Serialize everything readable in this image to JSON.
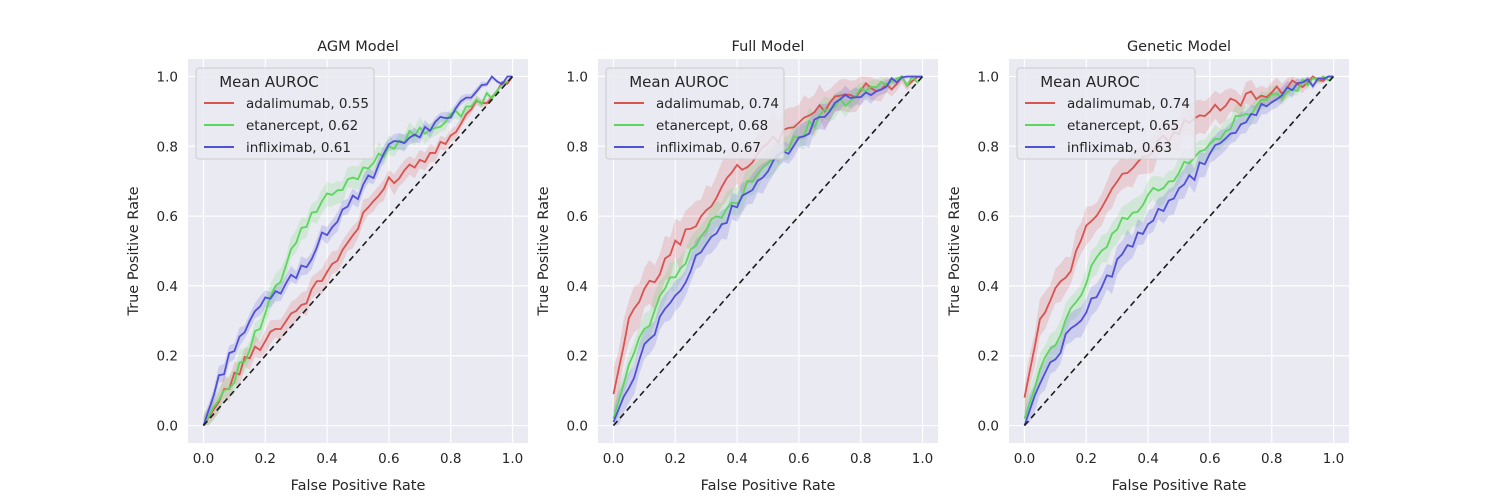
{
  "chart_data": [
    {
      "type": "line",
      "title": "AGM Model",
      "xlabel": "False Positive Rate",
      "ylabel": "True Positive Rate",
      "xlim": [
        -0.05,
        1.05
      ],
      "ylim": [
        -0.05,
        1.05
      ],
      "xticks": [
        "0.0",
        "0.2",
        "0.4",
        "0.6",
        "0.8",
        "1.0"
      ],
      "yticks": [
        "0.0",
        "0.2",
        "0.4",
        "0.6",
        "0.8",
        "1.0"
      ],
      "grid": true,
      "legend": {
        "title": "Mean AUROC",
        "position": "top-left"
      },
      "x": [
        0,
        0.05,
        0.1,
        0.15,
        0.2,
        0.25,
        0.3,
        0.35,
        0.4,
        0.45,
        0.5,
        0.55,
        0.6,
        0.65,
        0.7,
        0.75,
        0.8,
        0.85,
        0.9,
        0.95,
        1.0
      ],
      "series": [
        {
          "name": "adalimumab, 0.55",
          "color": "#d9534f",
          "values": [
            0.0,
            0.07,
            0.14,
            0.2,
            0.25,
            0.29,
            0.33,
            0.38,
            0.44,
            0.5,
            0.57,
            0.64,
            0.7,
            0.73,
            0.76,
            0.79,
            0.84,
            0.89,
            0.93,
            0.96,
            1.0
          ],
          "band": 0.04
        },
        {
          "name": "etanercept, 0.62",
          "color": "#5cd65c",
          "values": [
            0.0,
            0.08,
            0.14,
            0.22,
            0.32,
            0.42,
            0.53,
            0.6,
            0.65,
            0.68,
            0.72,
            0.76,
            0.8,
            0.82,
            0.84,
            0.86,
            0.88,
            0.9,
            0.93,
            0.96,
            1.0
          ],
          "band": 0.04
        },
        {
          "name": "infliximab, 0.61",
          "color": "#5050d8",
          "values": [
            0.0,
            0.13,
            0.23,
            0.3,
            0.35,
            0.39,
            0.43,
            0.49,
            0.56,
            0.61,
            0.66,
            0.72,
            0.79,
            0.82,
            0.83,
            0.86,
            0.9,
            0.94,
            0.97,
            0.99,
            1.0
          ],
          "band": 0.03
        }
      ]
    },
    {
      "type": "line",
      "title": "Full Model",
      "xlabel": "False Positive Rate",
      "ylabel": "True Positive Rate",
      "xlim": [
        -0.05,
        1.05
      ],
      "ylim": [
        -0.05,
        1.05
      ],
      "xticks": [
        "0.0",
        "0.2",
        "0.4",
        "0.6",
        "0.8",
        "1.0"
      ],
      "yticks": [
        "0.0",
        "0.2",
        "0.4",
        "0.6",
        "0.8",
        "1.0"
      ],
      "grid": true,
      "legend": {
        "title": "Mean AUROC",
        "position": "top-left"
      },
      "x": [
        0,
        0.05,
        0.1,
        0.15,
        0.2,
        0.25,
        0.3,
        0.35,
        0.4,
        0.45,
        0.5,
        0.55,
        0.6,
        0.65,
        0.7,
        0.75,
        0.8,
        0.85,
        0.9,
        0.95,
        1.0
      ],
      "series": [
        {
          "name": "adalimumab, 0.74",
          "color": "#d9534f",
          "values": [
            0.09,
            0.3,
            0.38,
            0.44,
            0.52,
            0.56,
            0.62,
            0.68,
            0.73,
            0.77,
            0.8,
            0.84,
            0.87,
            0.9,
            0.92,
            0.94,
            0.96,
            0.97,
            0.98,
            0.99,
            1.0
          ],
          "band": 0.08
        },
        {
          "name": "etanercept, 0.68",
          "color": "#5cd65c",
          "values": [
            0.02,
            0.17,
            0.27,
            0.36,
            0.44,
            0.5,
            0.56,
            0.61,
            0.65,
            0.7,
            0.74,
            0.79,
            0.83,
            0.87,
            0.9,
            0.93,
            0.95,
            0.97,
            0.98,
            0.99,
            1.0
          ],
          "band": 0.05
        },
        {
          "name": "infliximab, 0.67",
          "color": "#5050d8",
          "values": [
            0.01,
            0.12,
            0.22,
            0.3,
            0.37,
            0.45,
            0.52,
            0.58,
            0.63,
            0.68,
            0.73,
            0.78,
            0.82,
            0.86,
            0.9,
            0.93,
            0.95,
            0.97,
            0.99,
            1.0,
            1.0
          ],
          "band": 0.05
        }
      ]
    },
    {
      "type": "line",
      "title": "Genetic Model",
      "xlabel": "False Positive Rate",
      "ylabel": "True Positive Rate",
      "xlim": [
        -0.05,
        1.05
      ],
      "ylim": [
        -0.05,
        1.05
      ],
      "xticks": [
        "0.0",
        "0.2",
        "0.4",
        "0.6",
        "0.8",
        "1.0"
      ],
      "yticks": [
        "0.0",
        "0.2",
        "0.4",
        "0.6",
        "0.8",
        "1.0"
      ],
      "grid": true,
      "legend": {
        "title": "Mean AUROC",
        "position": "top-left"
      },
      "x": [
        0,
        0.05,
        0.1,
        0.15,
        0.2,
        0.25,
        0.3,
        0.35,
        0.4,
        0.45,
        0.5,
        0.55,
        0.6,
        0.65,
        0.7,
        0.75,
        0.8,
        0.85,
        0.9,
        0.95,
        1.0
      ],
      "series": [
        {
          "name": "adalimumab, 0.74",
          "color": "#d9534f",
          "values": [
            0.08,
            0.3,
            0.38,
            0.46,
            0.56,
            0.62,
            0.69,
            0.74,
            0.78,
            0.82,
            0.85,
            0.88,
            0.9,
            0.92,
            0.93,
            0.95,
            0.96,
            0.97,
            0.98,
            0.99,
            1.0
          ],
          "band": 0.06
        },
        {
          "name": "etanercept, 0.65",
          "color": "#5cd65c",
          "values": [
            0.02,
            0.15,
            0.24,
            0.33,
            0.42,
            0.5,
            0.56,
            0.62,
            0.65,
            0.69,
            0.73,
            0.77,
            0.81,
            0.85,
            0.88,
            0.91,
            0.94,
            0.96,
            0.98,
            0.99,
            1.0
          ],
          "band": 0.05
        },
        {
          "name": "infliximab, 0.63",
          "color": "#5050d8",
          "values": [
            0.0,
            0.13,
            0.2,
            0.27,
            0.34,
            0.4,
            0.46,
            0.52,
            0.57,
            0.62,
            0.67,
            0.72,
            0.77,
            0.82,
            0.86,
            0.9,
            0.93,
            0.96,
            0.98,
            0.99,
            1.0
          ],
          "band": 0.05
        }
      ]
    }
  ]
}
